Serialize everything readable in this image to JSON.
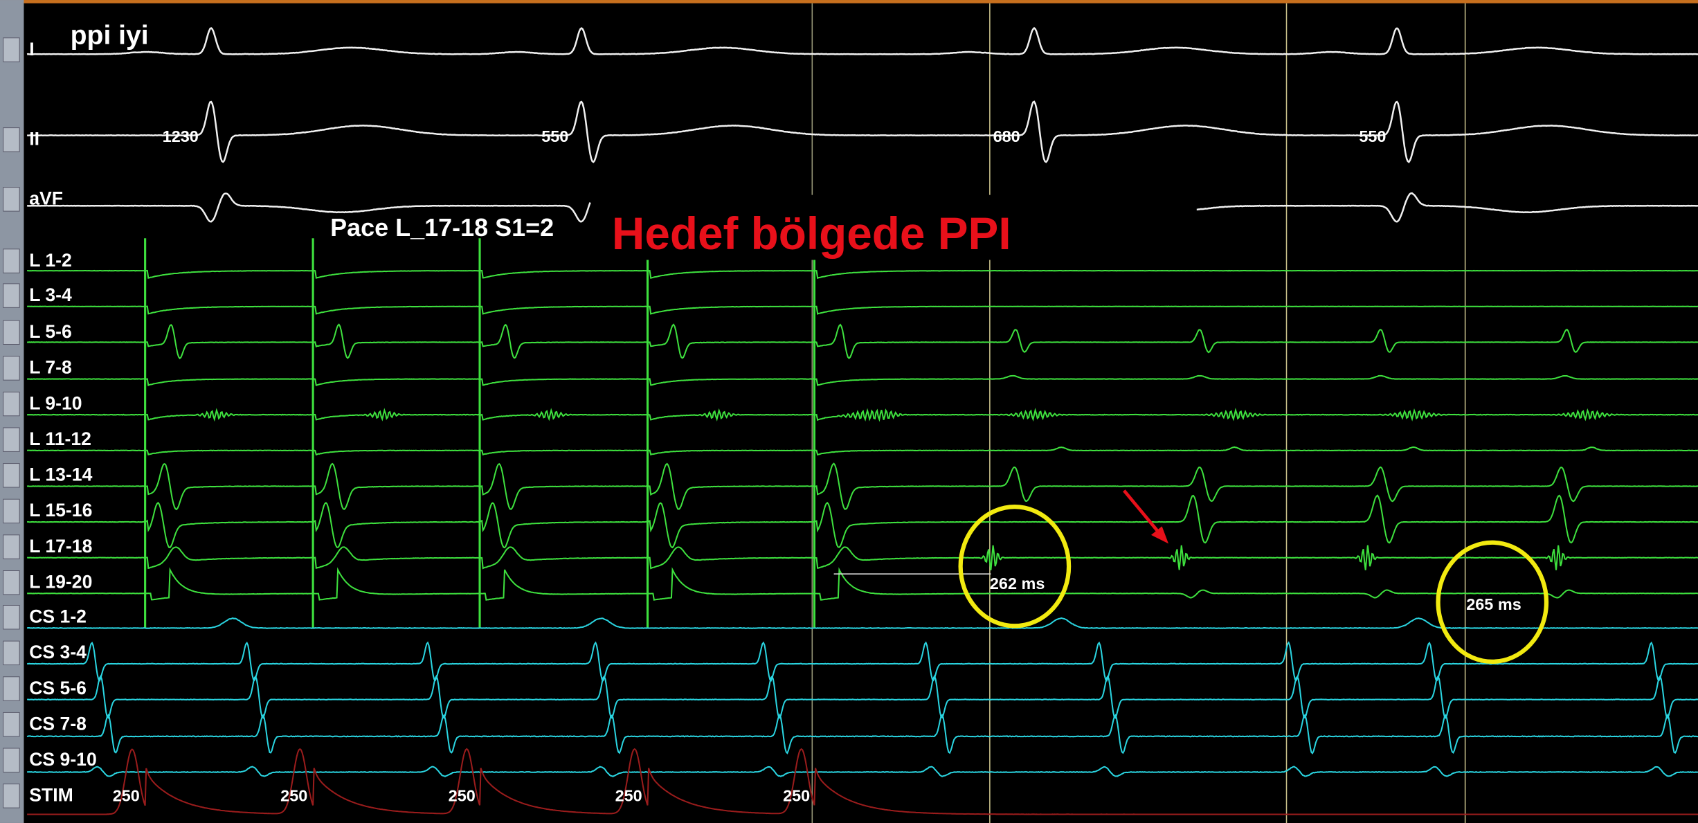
{
  "header": {
    "title": "ppi iyi",
    "annotation": "Hedef bölgede PPI",
    "pace_label": "Pace L_17-18 S1=2"
  },
  "channels": [
    "I",
    "II",
    "aVF",
    "L 1-2",
    "L 3-4",
    "L 5-6",
    "L 7-8",
    "L 9-10",
    "L 11-12",
    "L 13-14",
    "L 15-16",
    "L 17-18",
    "L 19-20",
    "CS 1-2",
    "CS 3-4",
    "CS 5-6",
    "CS 7-8",
    "CS 9-10",
    "STIM"
  ],
  "ecg_intervals": [
    "1230",
    "550",
    "680",
    "550"
  ],
  "measurements": [
    "262 ms",
    "265 ms"
  ],
  "stim_labels": [
    "250",
    "250",
    "250",
    "250",
    "250"
  ]
}
